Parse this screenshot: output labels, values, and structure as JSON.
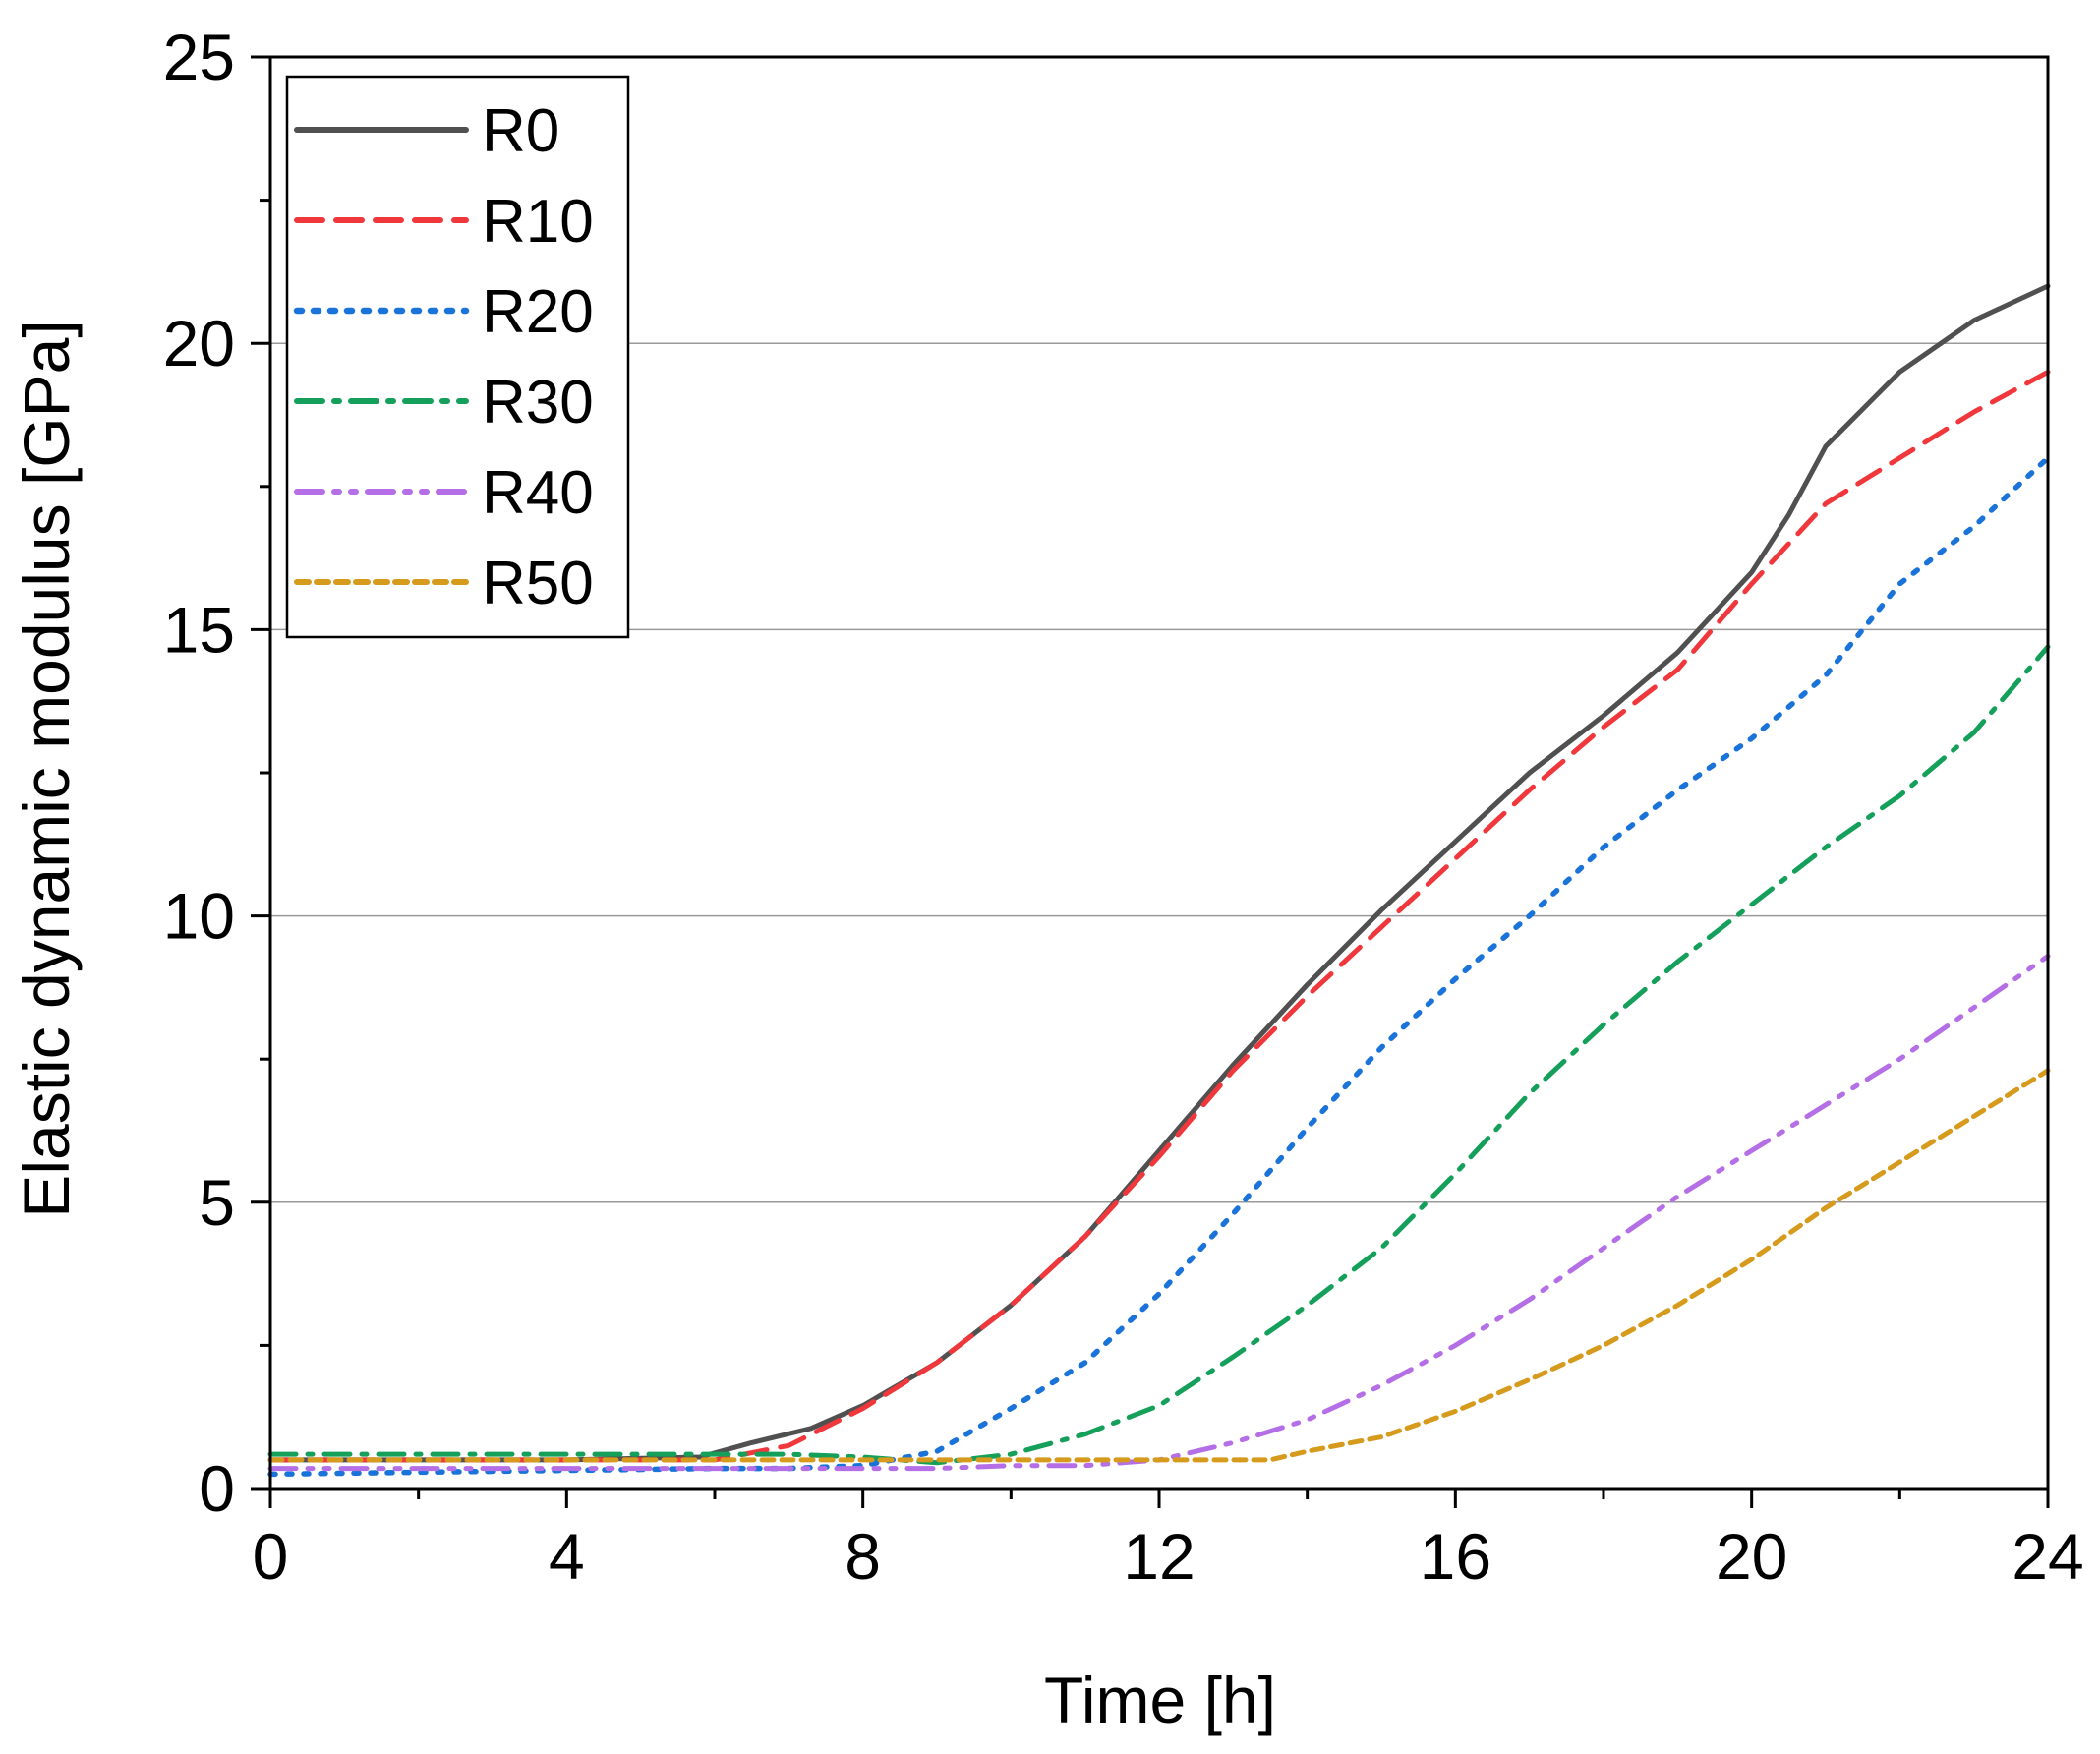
{
  "chart_data": {
    "type": "line",
    "xlabel": "Time [h]",
    "ylabel": "Elastic dynamic modulus [GPa]",
    "xlim": [
      0,
      24
    ],
    "ylim": [
      0,
      25
    ],
    "xticks": [
      0,
      4,
      8,
      12,
      16,
      20,
      24
    ],
    "yticks": [
      0,
      5,
      10,
      15,
      20,
      25
    ],
    "x_minor_step": 2,
    "y_minor_step": 2.5,
    "grid": "horizontal major",
    "legend_position": "top-left",
    "series": [
      {
        "name": "R0",
        "color": "#505050",
        "style": "solid",
        "points": [
          [
            0,
            0.5
          ],
          [
            4,
            0.5
          ],
          [
            5.8,
            0.55
          ],
          [
            6.5,
            0.8
          ],
          [
            7.3,
            1.05
          ],
          [
            8,
            1.45
          ],
          [
            9,
            2.2
          ],
          [
            10,
            3.2
          ],
          [
            11,
            4.4
          ],
          [
            12,
            5.9
          ],
          [
            13,
            7.4
          ],
          [
            14,
            8.8
          ],
          [
            15,
            10.1
          ],
          [
            16,
            11.3
          ],
          [
            17,
            12.5
          ],
          [
            18,
            13.5
          ],
          [
            19,
            14.6
          ],
          [
            20,
            16.0
          ],
          [
            20.5,
            17.0
          ],
          [
            21,
            18.2
          ],
          [
            22,
            19.5
          ],
          [
            23,
            20.4
          ],
          [
            24,
            21.0
          ]
        ]
      },
      {
        "name": "R10",
        "color": "#f0383c",
        "style": "dash",
        "points": [
          [
            0,
            0.5
          ],
          [
            6,
            0.5
          ],
          [
            7,
            0.75
          ],
          [
            8,
            1.4
          ],
          [
            9,
            2.2
          ],
          [
            10,
            3.2
          ],
          [
            11,
            4.4
          ],
          [
            12,
            5.8
          ],
          [
            13,
            7.3
          ],
          [
            14,
            8.6
          ],
          [
            15,
            9.8
          ],
          [
            16,
            11.0
          ],
          [
            17,
            12.2
          ],
          [
            18,
            13.3
          ],
          [
            19,
            14.3
          ],
          [
            20,
            15.8
          ],
          [
            21,
            17.2
          ],
          [
            22,
            18.0
          ],
          [
            23,
            18.8
          ],
          [
            24,
            19.5
          ]
        ]
      },
      {
        "name": "R20",
        "color": "#1a73d9",
        "style": "dot",
        "points": [
          [
            0,
            0.25
          ],
          [
            6,
            0.35
          ],
          [
            7,
            0.35
          ],
          [
            8,
            0.4
          ],
          [
            9,
            0.65
          ],
          [
            10,
            1.4
          ],
          [
            11,
            2.2
          ],
          [
            12,
            3.4
          ],
          [
            13,
            4.8
          ],
          [
            14,
            6.3
          ],
          [
            15,
            7.7
          ],
          [
            16,
            8.9
          ],
          [
            17,
            10.0
          ],
          [
            18,
            11.2
          ],
          [
            19,
            12.2
          ],
          [
            20,
            13.1
          ],
          [
            21,
            14.2
          ],
          [
            22,
            15.8
          ],
          [
            23,
            16.8
          ],
          [
            24,
            18.0
          ]
        ]
      },
      {
        "name": "R30",
        "color": "#14a05a",
        "style": "dashdot",
        "points": [
          [
            0,
            0.6
          ],
          [
            7,
            0.6
          ],
          [
            8,
            0.55
          ],
          [
            9,
            0.45
          ],
          [
            10,
            0.6
          ],
          [
            11,
            0.95
          ],
          [
            12,
            1.45
          ],
          [
            13,
            2.3
          ],
          [
            14,
            3.2
          ],
          [
            15,
            4.2
          ],
          [
            16,
            5.5
          ],
          [
            17,
            6.9
          ],
          [
            18,
            8.1
          ],
          [
            19,
            9.2
          ],
          [
            20,
            10.2
          ],
          [
            21,
            11.2
          ],
          [
            22,
            12.1
          ],
          [
            23,
            13.2
          ],
          [
            24,
            14.7
          ]
        ]
      },
      {
        "name": "R40",
        "color": "#b46ee6",
        "style": "dashdotdot",
        "points": [
          [
            0,
            0.35
          ],
          [
            9,
            0.35
          ],
          [
            10,
            0.4
          ],
          [
            11,
            0.4
          ],
          [
            12,
            0.5
          ],
          [
            13,
            0.8
          ],
          [
            14,
            1.2
          ],
          [
            15,
            1.8
          ],
          [
            16,
            2.5
          ],
          [
            17,
            3.3
          ],
          [
            18,
            4.2
          ],
          [
            19,
            5.1
          ],
          [
            20,
            5.9
          ],
          [
            21,
            6.7
          ],
          [
            22,
            7.5
          ],
          [
            23,
            8.4
          ],
          [
            24,
            9.3
          ]
        ]
      },
      {
        "name": "R50",
        "color": "#d69a1c",
        "style": "shortdash",
        "points": [
          [
            0,
            0.5
          ],
          [
            12,
            0.5
          ],
          [
            13.5,
            0.5
          ],
          [
            14,
            0.65
          ],
          [
            15,
            0.9
          ],
          [
            16,
            1.35
          ],
          [
            17,
            1.9
          ],
          [
            18,
            2.5
          ],
          [
            19,
            3.2
          ],
          [
            20,
            4.0
          ],
          [
            21,
            4.9
          ],
          [
            22,
            5.7
          ],
          [
            23,
            6.5
          ],
          [
            24,
            7.3
          ]
        ]
      }
    ]
  }
}
